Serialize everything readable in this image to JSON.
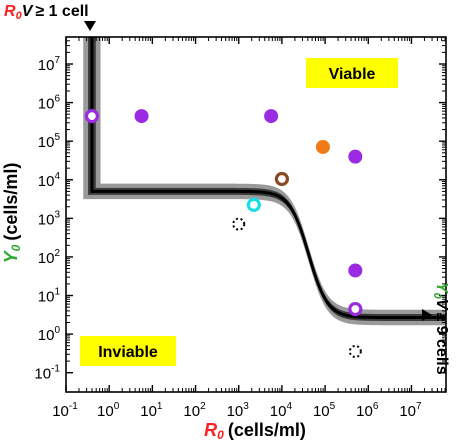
{
  "chart_data": {
    "type": "scatter",
    "xlabel": {
      "symbol_base": "R",
      "symbol_sub": "0",
      "unit": "(cells/ml)"
    },
    "ylabel": {
      "symbol_base": "Y",
      "symbol_sub": "0",
      "unit": "(cells/ml)"
    },
    "x_scale": "log",
    "y_scale": "log",
    "xlim_log10": [
      -1,
      7.8
    ],
    "ylim_log10": [
      -1.5,
      7.7
    ],
    "x_ticks_log10": [
      -1,
      0,
      1,
      2,
      3,
      4,
      5,
      6,
      7
    ],
    "y_ticks_log10": [
      -1,
      0,
      1,
      2,
      3,
      4,
      5,
      6,
      7
    ],
    "tick_base": "10",
    "grid": false,
    "annotations": {
      "top": {
        "sym": "R",
        "sub": "0",
        "var": "V",
        "rel": "≥ 1 cell"
      },
      "right": {
        "sym": "Y",
        "sub": "0",
        "var": "V",
        "rel": "≥ 9 cells"
      }
    },
    "regions": {
      "viable": "Viable",
      "inviable": "Inviable"
    },
    "colors": {
      "purple": "#9a2be2",
      "orange": "#f07a1a",
      "brown": "#8b4a26",
      "cyan": "#19dde8",
      "band_outer": "#9a9a9a",
      "band_inner": "#3c3c3c",
      "line": "#000000",
      "highlight": "#ffff00",
      "x_axis_symbol": "#ff2020",
      "y_axis_symbol": "#2ea82e"
    },
    "boundary_curve": {
      "vertical_x_log10": -0.4,
      "top_y_log10": 7.7,
      "plateau_high_y_log10": 3.7,
      "plateau_low_y_log10": 0.43,
      "transition_center_x_log10": 4.62,
      "transition_steepness": 4.6,
      "band_inner_halfwidth_log10": 0.09,
      "band_outer_halfwidth_log10": 0.2
    },
    "points": [
      {
        "x_log10": -0.4,
        "y_log10": 5.65,
        "color": "purple",
        "style": "ring"
      },
      {
        "x_log10": 0.75,
        "y_log10": 5.65,
        "color": "purple",
        "style": "filled"
      },
      {
        "x_log10": 3.75,
        "y_log10": 5.65,
        "color": "purple",
        "style": "filled"
      },
      {
        "x_log10": 4.95,
        "y_log10": 4.85,
        "color": "orange",
        "style": "filled"
      },
      {
        "x_log10": 5.7,
        "y_log10": 4.6,
        "color": "purple",
        "style": "filled"
      },
      {
        "x_log10": 4.0,
        "y_log10": 4.02,
        "color": "brown",
        "style": "ring"
      },
      {
        "x_log10": 3.35,
        "y_log10": 3.35,
        "color": "cyan",
        "style": "ring"
      },
      {
        "x_log10": 3.0,
        "y_log10": 2.85,
        "color": "black",
        "style": "dotted"
      },
      {
        "x_log10": 5.7,
        "y_log10": 1.65,
        "color": "purple",
        "style": "filled"
      },
      {
        "x_log10": 5.7,
        "y_log10": 0.65,
        "color": "purple",
        "style": "ring"
      },
      {
        "x_log10": 5.7,
        "y_log10": -0.45,
        "color": "black",
        "style": "dotted"
      }
    ]
  }
}
